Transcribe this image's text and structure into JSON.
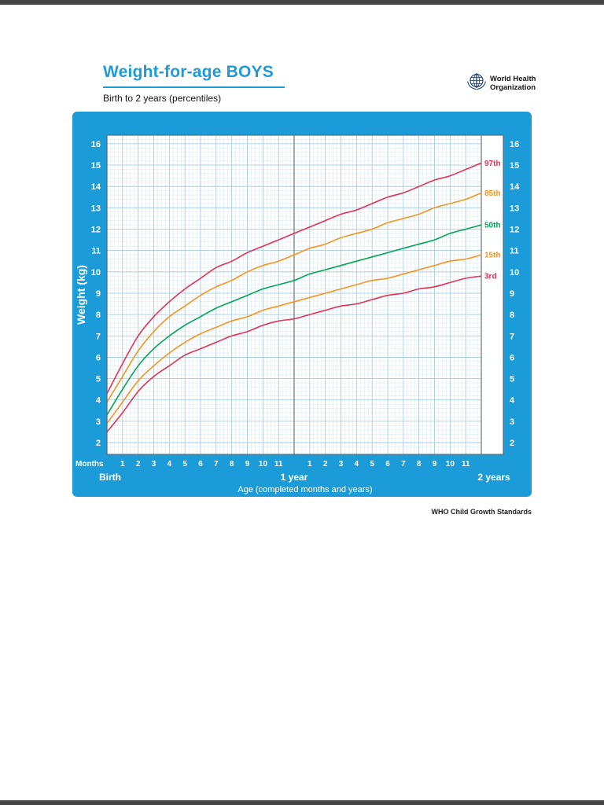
{
  "page": {
    "title": "Weight-for-age BOYS",
    "subtitle": "Birth to 2 years (percentiles)",
    "logo_line1": "World Health",
    "logo_line2": "Organization",
    "footer": "WHO Child Growth Standards"
  },
  "colors": {
    "chart_bg": "#1b9cd8",
    "title_blue": "#1b9cd8",
    "plot_bg": "#ffffff",
    "grid_minor": "#d7e7f1",
    "grid_major": "#9ec9df",
    "grid_dark": "#5b6770",
    "axis_text": "#ffffff",
    "p97": "#e23352",
    "p85": "#f7941e",
    "p50": "#00a650",
    "p15": "#f7941e",
    "p3": "#e23352"
  },
  "chart_data": {
    "type": "line",
    "title": "Weight-for-age BOYS",
    "subtitle": "Birth to 2 years (percentiles)",
    "xlabel": "Age (completed months and years)",
    "ylabel": "Weight (kg)",
    "x_axis_unit": "Months",
    "x_section_labels": [
      "Birth",
      "1 year",
      "2 years"
    ],
    "xlim_months": [
      0,
      24
    ],
    "ylim": [
      2,
      16
    ],
    "y_ticks": [
      2,
      3,
      4,
      5,
      6,
      7,
      8,
      9,
      10,
      11,
      12,
      13,
      14,
      15,
      16
    ],
    "x_month_ticks": [
      [
        1,
        "1"
      ],
      [
        2,
        "2"
      ],
      [
        3,
        "3"
      ],
      [
        4,
        "4"
      ],
      [
        5,
        "5"
      ],
      [
        6,
        "6"
      ],
      [
        7,
        "7"
      ],
      [
        8,
        "8"
      ],
      [
        9,
        "9"
      ],
      [
        10,
        "10"
      ],
      [
        11,
        "11"
      ],
      [
        13,
        "1"
      ],
      [
        14,
        "2"
      ],
      [
        15,
        "3"
      ],
      [
        16,
        "4"
      ],
      [
        17,
        "5"
      ],
      [
        18,
        "6"
      ],
      [
        19,
        "7"
      ],
      [
        20,
        "8"
      ],
      [
        21,
        "9"
      ],
      [
        22,
        "10"
      ],
      [
        23,
        "11"
      ]
    ],
    "x": [
      0,
      1,
      2,
      3,
      4,
      5,
      6,
      7,
      8,
      9,
      10,
      11,
      12,
      13,
      14,
      15,
      16,
      17,
      18,
      19,
      20,
      21,
      22,
      23,
      24
    ],
    "series": [
      {
        "name": "97th",
        "color": "#e23352",
        "values": [
          4.3,
          5.7,
          7.0,
          7.9,
          8.6,
          9.2,
          9.7,
          10.2,
          10.5,
          10.9,
          11.2,
          11.5,
          11.8,
          12.1,
          12.4,
          12.7,
          12.9,
          13.2,
          13.5,
          13.7,
          14.0,
          14.3,
          14.5,
          14.8,
          15.1
        ]
      },
      {
        "name": "85th",
        "color": "#f7941e",
        "values": [
          3.9,
          5.1,
          6.3,
          7.2,
          7.9,
          8.4,
          8.9,
          9.3,
          9.6,
          10.0,
          10.3,
          10.5,
          10.8,
          11.1,
          11.3,
          11.6,
          11.8,
          12.0,
          12.3,
          12.5,
          12.7,
          13.0,
          13.2,
          13.4,
          13.7
        ]
      },
      {
        "name": "50th",
        "color": "#00a650",
        "values": [
          3.3,
          4.5,
          5.6,
          6.4,
          7.0,
          7.5,
          7.9,
          8.3,
          8.6,
          8.9,
          9.2,
          9.4,
          9.6,
          9.9,
          10.1,
          10.3,
          10.5,
          10.7,
          10.9,
          11.1,
          11.3,
          11.5,
          11.8,
          12.0,
          12.2
        ]
      },
      {
        "name": "15th",
        "color": "#f7941e",
        "values": [
          2.9,
          3.9,
          4.9,
          5.6,
          6.2,
          6.7,
          7.1,
          7.4,
          7.7,
          7.9,
          8.2,
          8.4,
          8.6,
          8.8,
          9.0,
          9.2,
          9.4,
          9.6,
          9.7,
          9.9,
          10.1,
          10.3,
          10.5,
          10.6,
          10.8
        ]
      },
      {
        "name": "3rd",
        "color": "#e23352",
        "values": [
          2.5,
          3.4,
          4.4,
          5.1,
          5.6,
          6.1,
          6.4,
          6.7,
          7.0,
          7.2,
          7.5,
          7.7,
          7.8,
          8.0,
          8.2,
          8.4,
          8.5,
          8.7,
          8.9,
          9.0,
          9.2,
          9.3,
          9.5,
          9.7,
          9.8
        ]
      }
    ]
  }
}
